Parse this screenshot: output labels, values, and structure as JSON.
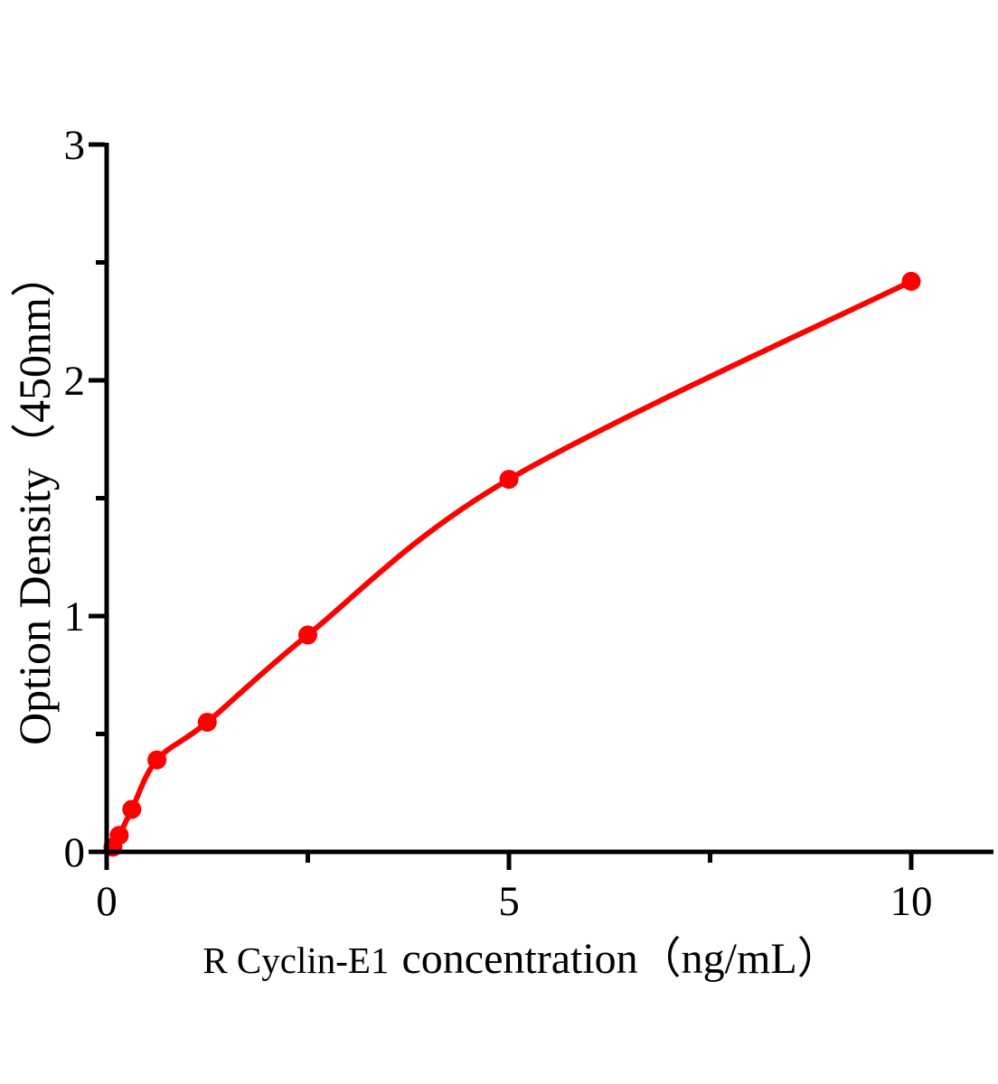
{
  "chart_data": {
    "type": "line",
    "title": "",
    "description": "ELISA standard curve: red smooth curve with red circular markers on black axes",
    "xlabel": "R Cyclin-E1 concentration（ng/mL）",
    "xlabel_prefix": "R Cyclin-E1",
    "xlabel_rest": "concentration（ng/mL）",
    "ylabel": "Option Density（450nm）",
    "x": [
      0.078,
      0.156,
      0.312,
      0.625,
      1.25,
      2.5,
      5,
      10
    ],
    "od_values": [
      0.02,
      0.07,
      0.18,
      0.39,
      0.55,
      0.92,
      1.58,
      2.42
    ],
    "curve_starts_at_origin": true,
    "xlim": [
      0,
      11
    ],
    "ylim": [
      0,
      3
    ],
    "x_major_ticks": [
      0,
      5,
      10
    ],
    "x_minor_ticks": [
      2.5,
      7.5
    ],
    "y_major_ticks": [
      0,
      1,
      2,
      3
    ],
    "y_minor_ticks": [
      0.5,
      1.5,
      2.5
    ],
    "grid": false,
    "legend": false,
    "marker": "circle",
    "colors": {
      "curve": "#ff0000",
      "marker": "#ff0000",
      "axis": "#000000",
      "text": "#000000",
      "background": "#ffffff"
    }
  }
}
